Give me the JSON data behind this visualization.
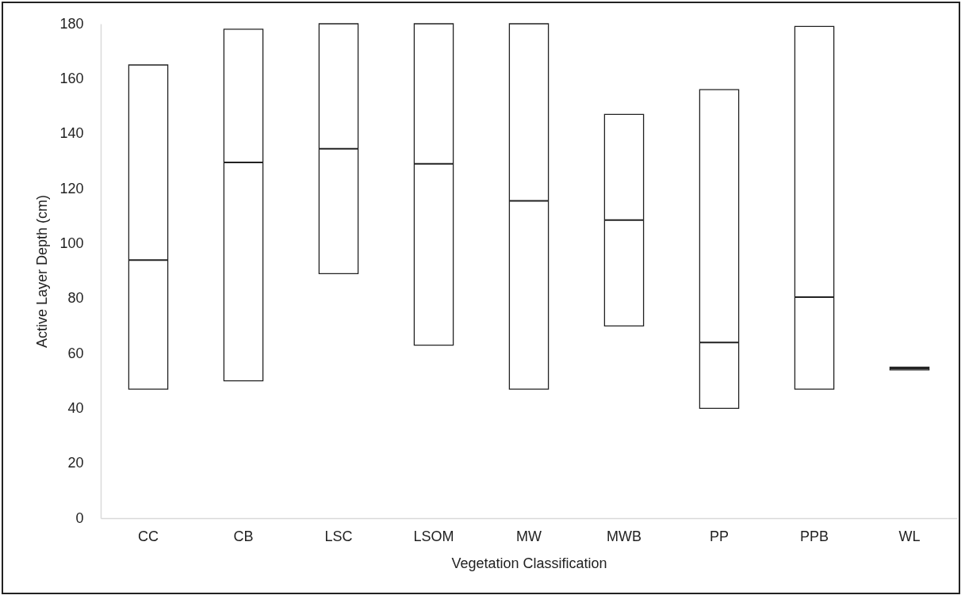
{
  "chart_data": {
    "type": "box",
    "xlabel": "Vegetation Classification",
    "ylabel": "Active Layer Depth (cm)",
    "categories": [
      "CC",
      "CB",
      "LSC",
      "LSOM",
      "MW",
      "MWB",
      "PP",
      "PPB",
      "WL"
    ],
    "boxes": [
      {
        "low": 47,
        "q1": 47,
        "median": 94,
        "q3": 165,
        "high": 165
      },
      {
        "low": 50,
        "q1": 50,
        "median": 129.5,
        "q3": 178,
        "high": 178
      },
      {
        "low": 89,
        "q1": 89,
        "median": 134.5,
        "q3": 180,
        "high": 180
      },
      {
        "low": 63,
        "q1": 63,
        "median": 129,
        "q3": 180,
        "high": 180
      },
      {
        "low": 47,
        "q1": 47,
        "median": 115.5,
        "q3": 180,
        "high": 180
      },
      {
        "low": 70,
        "q1": 70,
        "median": 108.5,
        "q3": 147,
        "high": 147
      },
      {
        "low": 40,
        "q1": 40,
        "median": 64,
        "q3": 156,
        "high": 156
      },
      {
        "low": 47,
        "q1": 47,
        "median": 80.5,
        "q3": 179,
        "high": 179
      },
      {
        "low": 54,
        "q1": 54,
        "median": 54.5,
        "q3": 55,
        "high": 55
      }
    ],
    "ylim": [
      0,
      180
    ],
    "yticks": [
      0,
      20,
      40,
      60,
      80,
      100,
      120,
      140,
      160,
      180
    ],
    "grid": false
  }
}
